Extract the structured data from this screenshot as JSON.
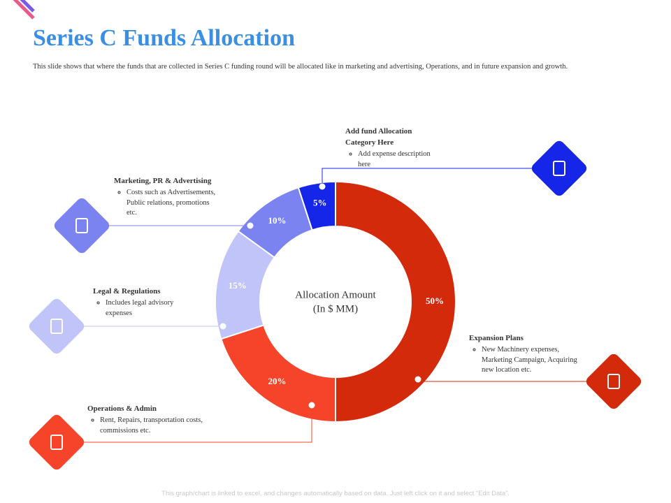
{
  "title": "Series C Funds Allocation",
  "subtitle": "This slide shows that where the funds that are collected in Series C funding round will be allocated like in marketing and advertising, Operations, and in future expansion and growth.",
  "footer": "This graph/chart is linked to excel, and changes automatically based on data. Just left click on it and select “Edit Data”.",
  "chart_data": {
    "type": "donut",
    "center_label": [
      "Allocation Amount",
      "(In $ MM)"
    ],
    "categories": [
      "Expansion Plans",
      "Operations & Admin",
      "Legal & Regulations",
      "Marketing, PR & Advertising",
      "Add fund Allocation Category Here"
    ],
    "descriptions": [
      "New Machinery expenses, Marketing Campaign, Acquiring new location etc.",
      "Rent, Repairs, transportation costs, commissions etc.",
      "Includes legal advisory expenses",
      "Costs such as Advertisements, Public relations, promotions etc.",
      "Add expense description here"
    ],
    "values": [
      50,
      20,
      15,
      10,
      5
    ],
    "value_labels": [
      "50%",
      "20%",
      "15%",
      "10%",
      "5%"
    ],
    "colors": [
      "#d42a0c",
      "#f5442a",
      "#c0c4f8",
      "#7b83f0",
      "#1526e8"
    ]
  }
}
